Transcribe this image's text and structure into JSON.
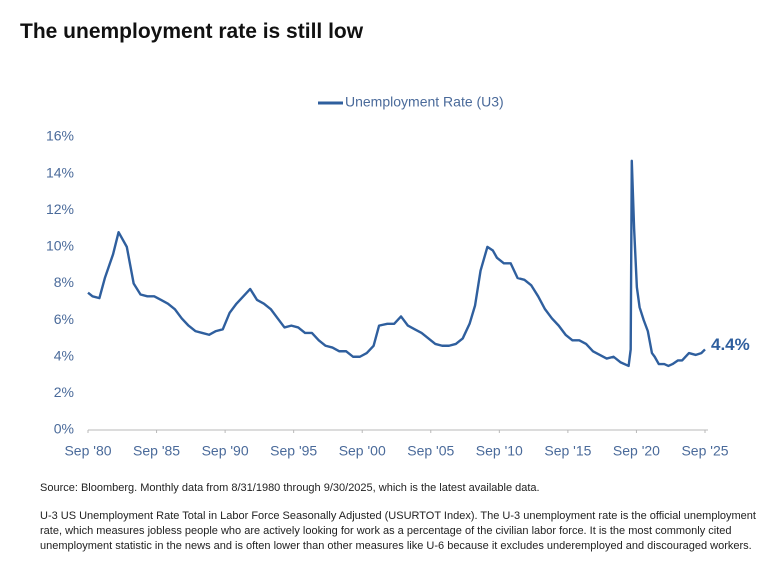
{
  "chart_data": {
    "type": "line",
    "title": "The unemployment rate is still low",
    "source": "Source: Bloomberg. Monthly data from 8/31/1980 through 9/30/2025, which is the latest available data.",
    "note": "U-3 US Unemployment Rate Total in Labor Force Seasonally Adjusted (USURTOT Index). The U-3 unemployment rate is the official unemployment rate, which measures jobless people who are actively looking for work as a percentage of the civilian labor force. It is the most commonly cited unemployment statistic in the news and is often lower than other measures like U-6 because it excludes underemployed and discouraged workers.",
    "legend": "top",
    "grid": false,
    "x": [
      1980.67,
      1981.0,
      1981.5,
      1981.9,
      1982.5,
      1982.9,
      1983.5,
      1984.0,
      1984.5,
      1985.0,
      1985.5,
      1986.0,
      1986.5,
      1987.0,
      1987.5,
      1988.0,
      1988.5,
      1989.0,
      1989.5,
      1990.0,
      1990.5,
      1991.0,
      1991.5,
      1992.0,
      1992.5,
      1993.0,
      1993.5,
      1994.0,
      1994.5,
      1995.0,
      1995.5,
      1996.0,
      1996.5,
      1997.0,
      1997.5,
      1998.0,
      1998.5,
      1999.0,
      1999.5,
      2000.0,
      2000.5,
      2001.0,
      2001.5,
      2001.9,
      2002.5,
      2003.0,
      2003.5,
      2004.0,
      2004.5,
      2005.0,
      2005.5,
      2006.0,
      2006.5,
      2007.0,
      2007.5,
      2008.0,
      2008.5,
      2008.9,
      2009.3,
      2009.8,
      2010.2,
      2010.5,
      2011.0,
      2011.5,
      2012.0,
      2012.5,
      2013.0,
      2013.5,
      2014.0,
      2014.5,
      2015.0,
      2015.5,
      2016.0,
      2016.5,
      2017.0,
      2017.5,
      2018.0,
      2018.5,
      2019.0,
      2019.5,
      2020.1,
      2020.25,
      2020.33,
      2020.5,
      2020.7,
      2020.9,
      2021.2,
      2021.5,
      2021.8,
      2022.0,
      2022.3,
      2022.7,
      2023.0,
      2023.3,
      2023.7,
      2024.0,
      2024.5,
      2025.0,
      2025.4,
      2025.67
    ],
    "series": [
      {
        "name": "Unemployment Rate (U3)",
        "color": "#2f5f9e",
        "values": [
          7.5,
          7.3,
          7.2,
          8.3,
          9.6,
          10.8,
          10.0,
          8.0,
          7.4,
          7.3,
          7.3,
          7.1,
          6.9,
          6.6,
          6.1,
          5.7,
          5.4,
          5.3,
          5.2,
          5.4,
          5.5,
          6.4,
          6.9,
          7.3,
          7.7,
          7.1,
          6.9,
          6.6,
          6.1,
          5.6,
          5.7,
          5.6,
          5.3,
          5.3,
          4.9,
          4.6,
          4.5,
          4.3,
          4.3,
          4.0,
          4.0,
          4.2,
          4.6,
          5.7,
          5.8,
          5.8,
          6.2,
          5.7,
          5.5,
          5.3,
          5.0,
          4.7,
          4.6,
          4.6,
          4.7,
          5.0,
          5.8,
          6.8,
          8.7,
          10.0,
          9.8,
          9.4,
          9.1,
          9.1,
          8.3,
          8.2,
          7.9,
          7.3,
          6.6,
          6.1,
          5.7,
          5.2,
          4.9,
          4.9,
          4.7,
          4.3,
          4.1,
          3.9,
          4.0,
          3.7,
          3.5,
          4.4,
          14.7,
          11.0,
          7.8,
          6.7,
          6.0,
          5.4,
          4.2,
          4.0,
          3.6,
          3.6,
          3.5,
          3.6,
          3.8,
          3.8,
          4.2,
          4.1,
          4.2,
          4.4
        ],
        "value_labels": [
          null,
          null,
          null,
          null,
          null,
          null,
          null,
          null,
          null,
          null,
          null,
          null,
          null,
          null,
          null,
          null,
          null,
          null,
          null,
          null,
          null,
          null,
          null,
          null,
          null,
          null,
          null,
          null,
          null,
          null,
          null,
          null,
          null,
          null,
          null,
          null,
          null,
          null,
          null,
          null,
          null,
          null,
          null,
          null,
          null,
          null,
          null,
          null,
          null,
          null,
          null,
          null,
          null,
          null,
          null,
          null,
          null,
          null,
          null,
          null,
          null,
          null,
          null,
          null,
          null,
          null,
          null,
          null,
          null,
          null,
          null,
          null,
          null,
          null,
          null,
          null,
          null,
          null,
          null,
          null,
          null,
          null,
          null,
          null,
          null,
          null,
          null,
          null,
          null,
          null,
          null,
          null,
          null,
          null,
          null,
          null,
          null,
          null,
          null,
          "4.4%"
        ]
      }
    ],
    "xlim": [
      1980.67,
      2025.67
    ],
    "xticks": [
      {
        "value": 1980.67,
        "label": "Sep '80"
      },
      {
        "value": 1985.67,
        "label": "Sep '85"
      },
      {
        "value": 1990.67,
        "label": "Sep '90"
      },
      {
        "value": 1995.67,
        "label": "Sep '95"
      },
      {
        "value": 2000.67,
        "label": "Sep '00"
      },
      {
        "value": 2005.67,
        "label": "Sep '05"
      },
      {
        "value": 2010.67,
        "label": "Sep '10"
      },
      {
        "value": 2015.67,
        "label": "Sep '15"
      },
      {
        "value": 2020.67,
        "label": "Sep '20"
      },
      {
        "value": 2025.67,
        "label": "Sep '25"
      }
    ],
    "ylim": [
      0,
      16
    ],
    "yticks": [
      {
        "value": 0,
        "label": "0%"
      },
      {
        "value": 2,
        "label": "2%"
      },
      {
        "value": 4,
        "label": "4%"
      },
      {
        "value": 6,
        "label": "6%"
      },
      {
        "value": 8,
        "label": "8%"
      },
      {
        "value": 10,
        "label": "10%"
      },
      {
        "value": 12,
        "label": "12%"
      },
      {
        "value": 14,
        "label": "14%"
      },
      {
        "value": 16,
        "label": "16%"
      }
    ]
  }
}
